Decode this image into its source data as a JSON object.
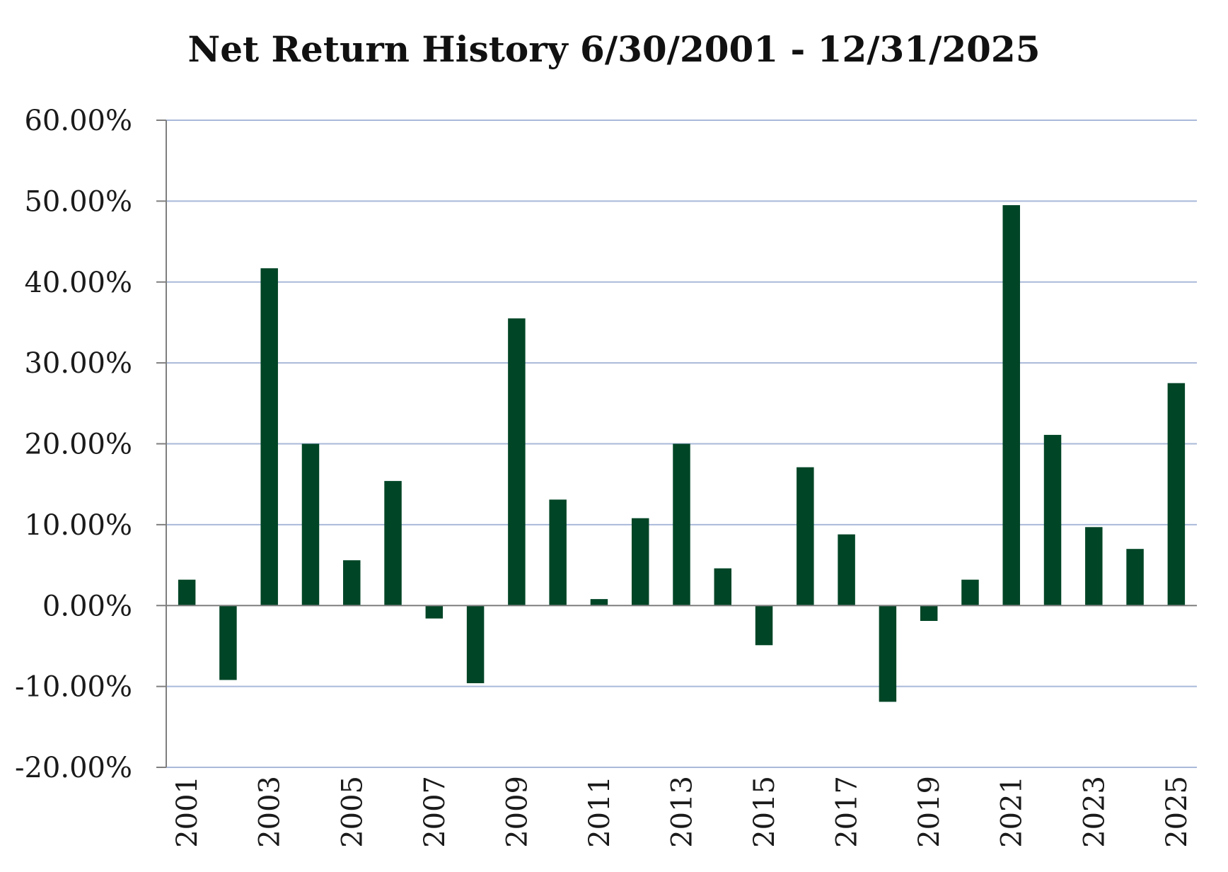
{
  "chart_data": {
    "type": "bar",
    "title": "Net Return History 6/30/2001 - 12/31/2025",
    "xlabel": "",
    "ylabel": "",
    "ylim": [
      -20,
      60
    ],
    "yticks": [
      60,
      50,
      40,
      30,
      20,
      10,
      0,
      -10,
      -20
    ],
    "ytick_labels": [
      "60.00%",
      "50.00%",
      "40.00%",
      "30.00%",
      "20.00%",
      "10.00%",
      "0.00%",
      "-10.00%",
      "-20.00%"
    ],
    "grid": true,
    "legend": "none",
    "categories": [
      "2001",
      "2002",
      "2003",
      "2004",
      "2005",
      "2006",
      "2007",
      "2008",
      "2009",
      "2010",
      "2011",
      "2012",
      "2013",
      "2014",
      "2015",
      "2016",
      "2017",
      "2018",
      "2019",
      "2020",
      "2021",
      "2022",
      "2023",
      "2024",
      "2025"
    ],
    "xtick_labels": [
      "2001",
      "2003",
      "2005",
      "2007",
      "2009",
      "2011",
      "2013",
      "2015",
      "2017",
      "2019",
      "2021",
      "2023",
      "2025"
    ],
    "values": [
      3.2,
      -9.2,
      41.7,
      20.0,
      5.6,
      15.4,
      -1.6,
      -9.6,
      35.5,
      13.1,
      0.8,
      10.8,
      20.0,
      4.6,
      -4.9,
      17.1,
      8.8,
      -11.9,
      -1.9,
      3.2,
      49.5,
      21.1,
      9.7,
      7.0,
      27.5
    ],
    "colors": {
      "bar": "#004526",
      "grid": "#a9b9d9",
      "axis": "#7f7f7f"
    }
  }
}
